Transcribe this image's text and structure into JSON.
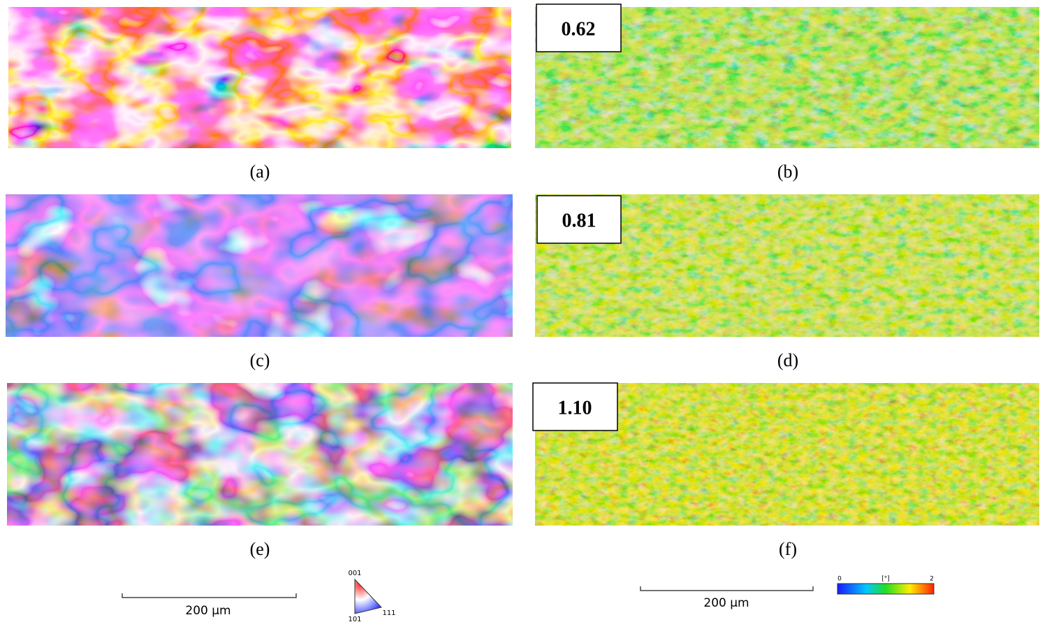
{
  "panels": [
    {
      "label": "(a)"
    },
    {
      "label": "(b)",
      "value": "0.62"
    },
    {
      "label": "(c)"
    },
    {
      "label": "(d)",
      "value": "0.81"
    },
    {
      "label": "(e)"
    },
    {
      "label": "(f)",
      "value": "1.10"
    }
  ],
  "ipf_legend": {
    "scale_bar": "200 µm",
    "corner_001": "001",
    "corner_101": "101",
    "corner_111": "111"
  },
  "kam_legend": {
    "scale_bar": "200 µm",
    "min": "0",
    "unit": "[°]",
    "max": "2"
  }
}
